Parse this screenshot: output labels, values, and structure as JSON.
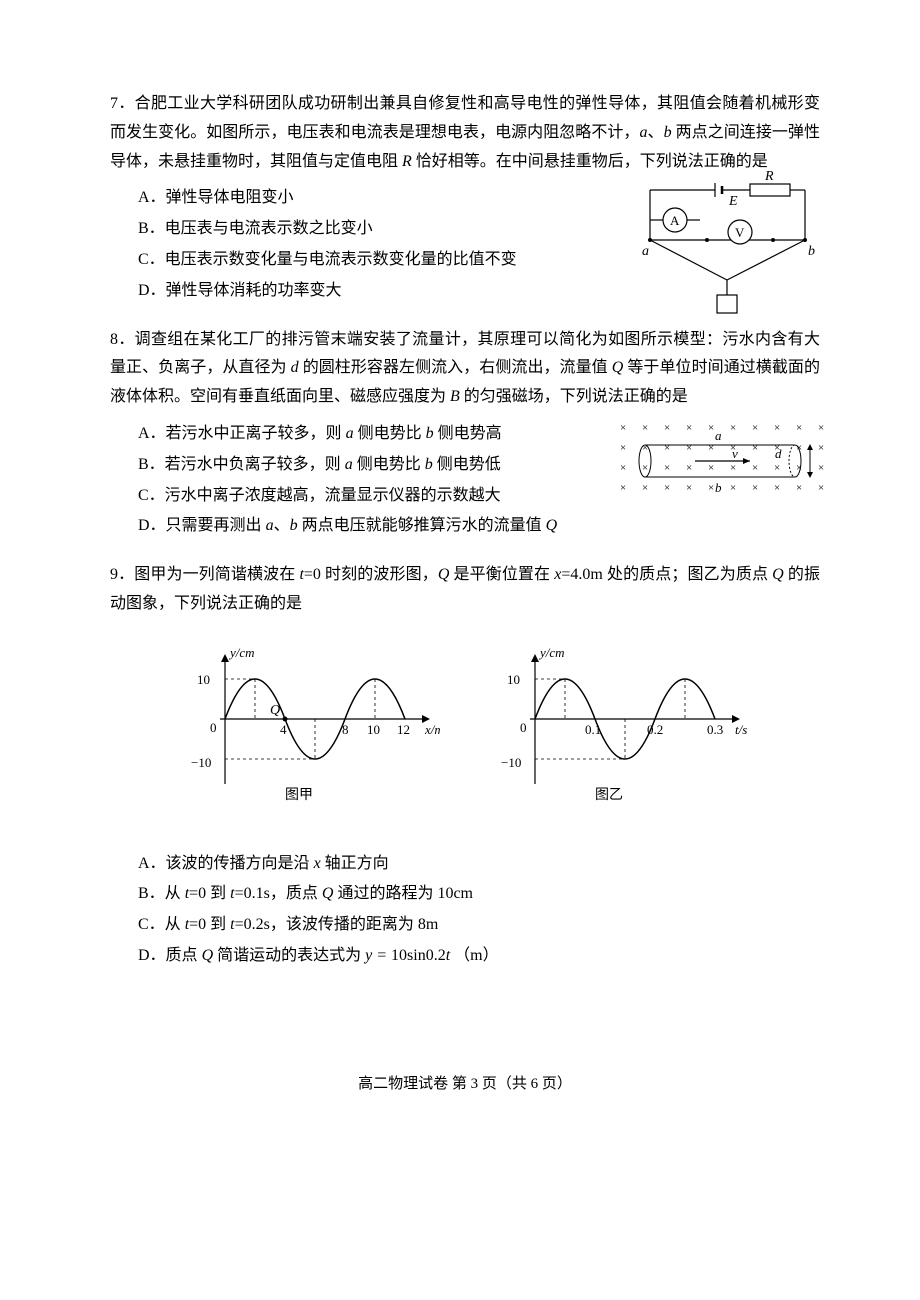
{
  "q7": {
    "num": "7．",
    "text": "合肥工业大学科研团队成功研制出兼具自修复性和高导电性的弹性导体，其阻值会随着机械形变而发生变化。如图所示，电压表和电流表是理想电表，电源内阻忽略不计，",
    "text2": "、",
    "text3": " 两点之间连接一弹性导体，未悬挂重物时，其阻值与定值电阻 ",
    "text4": " 恰好相等。在中间悬挂重物后，下列说法正确的是",
    "a": "a",
    "b": "b",
    "R": "R",
    "optA": "A．弹性导体电阻变小",
    "optB": "B．电压表与电流表示数之比变小",
    "optC": "C．电压表示数变化量与电流表示数变化量的比值不变",
    "optD": "D．弹性导体消耗的功率变大",
    "circuit": {
      "E": "E",
      "R": "R",
      "A": "A",
      "V": "V",
      "a": "a",
      "b": "b"
    }
  },
  "q8": {
    "num": "8．",
    "text": "调查组在某化工厂的排污管末端安装了流量计，其原理可以简化为如图所示模型：污水内含有大量正、负离子，从直径为 ",
    "text2": " 的圆柱形容器左侧流入，右侧流出，流量值 ",
    "text3": " 等于单位时间通过横截面的液体体积。空间有垂直纸面向里、磁感应强度为 ",
    "text4": " 的匀强磁场，下列说法正确的是",
    "d": "d",
    "Q": "Q",
    "B": "B",
    "optA_pre": "A．若污水中正离子较多，则 ",
    "optA_mid": " 侧电势比 ",
    "optA_post": " 侧电势高",
    "optB_pre": "B．若污水中负离子较多，则 ",
    "optB_mid": " 侧电势比 ",
    "optB_post": " 侧电势低",
    "optC": "C．污水中离子浓度越高，流量显示仪器的示数越大",
    "optD_pre": "D．只需要再测出 ",
    "optD_mid": "、",
    "optD_post": " 两点电压就能够推算污水的流量值 ",
    "a": "a",
    "b": "b",
    "flow": {
      "a": "a",
      "b": "b",
      "v": "v",
      "d": "d"
    }
  },
  "q9": {
    "num": "9．",
    "text": "图甲为一列简谐横波在 ",
    "text2": "=0 时刻的波形图，",
    "text3": " 是平衡位置在 ",
    "text4": "=4.0m 处的质点；图乙为质点 ",
    "text5": " 的振动图象，下列说法正确的是",
    "t": "t",
    "Q": "Q",
    "x": "x",
    "optA_pre": "A．该波的传播方向是沿 ",
    "optA_post": " 轴正方向",
    "optB_pre": "B．从 ",
    "optB_mid": "=0 到 ",
    "optB_mid2": "=0.1s，质点 ",
    "optB_post": " 通过的路程为 10cm",
    "optC_pre": "C．从 ",
    "optC_mid": "=0 到 ",
    "optC_post": "=0.2s，该波传播的距离为 8m",
    "optD_pre": "D．质点 ",
    "optD_mid": " 简谐运动的表达式为 ",
    "optD_eq": "y = 10sin0.2t",
    "optD_unit": "（m）",
    "chart1": {
      "ylabel": "y/cm",
      "xlabel": "x/m",
      "caption": "图甲",
      "Q": "Q",
      "yticks": [
        "10",
        "0",
        "−10"
      ],
      "xticks": [
        "4",
        "8",
        "10",
        "12"
      ],
      "amplitude": 10,
      "wavelength": 8,
      "xlim": [
        0,
        13
      ],
      "ylim": [
        -12,
        12
      ],
      "line_color": "#000000",
      "axis_color": "#000000"
    },
    "chart2": {
      "ylabel": "y/cm",
      "xlabel": "t/s",
      "caption": "图乙",
      "yticks": [
        "10",
        "0",
        "−10"
      ],
      "xticks": [
        "0.1",
        "0.2",
        "0.3"
      ],
      "amplitude": 10,
      "period": 0.2,
      "xlim": [
        0,
        0.32
      ],
      "ylim": [
        -12,
        12
      ],
      "line_color": "#000000",
      "axis_color": "#000000"
    }
  },
  "footer": {
    "pre": "高二物理试卷   第 ",
    "page": "3",
    "mid": " 页（共 ",
    "total": "6",
    "post": " 页）"
  }
}
